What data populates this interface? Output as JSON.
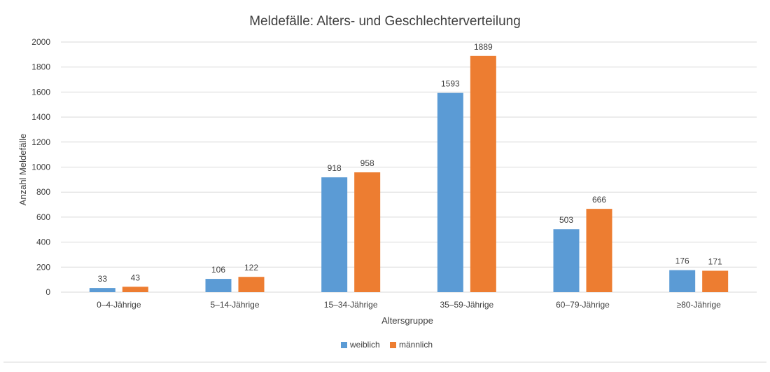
{
  "chart_data": {
    "type": "bar",
    "title": "Meldefälle: Alters- und Geschlechterverteilung",
    "xlabel": "Altersgruppe",
    "ylabel": "Anzahl Meldefälle",
    "categories": [
      "0–4-Jährige",
      "5–14-Jährige",
      "15–34-Jährige",
      "35–59-Jährige",
      "60–79-Jährige",
      "≥80-Jährige"
    ],
    "series": [
      {
        "name": "weiblich",
        "values": [
          33,
          106,
          918,
          1593,
          503,
          176
        ],
        "color": "#5b9bd5"
      },
      {
        "name": "männlich",
        "values": [
          43,
          122,
          958,
          1889,
          666,
          171
        ],
        "color": "#ed7d31"
      }
    ],
    "ylim": [
      0,
      2000
    ],
    "yticks": [
      0,
      200,
      400,
      600,
      800,
      1000,
      1200,
      1400,
      1600,
      1800,
      2000
    ],
    "grid": true,
    "legend_position": "bottom-center",
    "data_labels": true
  }
}
